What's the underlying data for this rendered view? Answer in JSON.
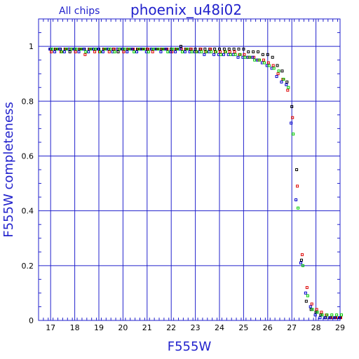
{
  "chart_data": {
    "type": "scatter",
    "title": "phoenix_u48i02",
    "subtitle": "All chips",
    "xlabel": "F555W",
    "ylabel": "F555W completeness",
    "xlim": [
      16.5,
      29
    ],
    "ylim": [
      0,
      1.1
    ],
    "x_ticks": [
      17,
      18,
      19,
      20,
      21,
      22,
      23,
      24,
      25,
      26,
      27,
      28,
      29
    ],
    "y_ticks": [
      0,
      0.2,
      0.4,
      0.6,
      0.8,
      1
    ],
    "x_tick_labels": [
      "17",
      "18",
      "19",
      "20",
      "21",
      "22",
      "23",
      "24",
      "25",
      "26",
      "27",
      "28",
      "29"
    ],
    "y_tick_labels": [
      "0",
      "0.2",
      "0.4",
      "0.6",
      "0.8",
      "1"
    ],
    "grid": true,
    "colors": {
      "text": "#2222cc",
      "axis": "#2222cc",
      "grid": "#2222cc"
    },
    "series": [
      {
        "color": "#000000",
        "x": [
          17.0,
          17.2,
          17.4,
          17.6,
          17.8,
          18.0,
          18.2,
          18.4,
          18.6,
          18.8,
          19.0,
          19.2,
          19.4,
          19.6,
          19.8,
          20.0,
          20.2,
          20.4,
          20.6,
          20.8,
          21.0,
          21.2,
          21.4,
          21.6,
          21.8,
          22.0,
          22.2,
          22.4,
          22.6,
          22.8,
          23.0,
          23.2,
          23.4,
          23.6,
          23.8,
          24.0,
          24.2,
          24.4,
          24.6,
          24.8,
          25.0,
          25.2,
          25.4,
          25.6,
          25.8,
          26.0,
          26.2,
          26.4,
          26.6,
          26.8,
          27.0,
          27.2,
          27.4,
          27.6,
          27.8,
          28.0,
          28.2,
          28.4,
          28.6,
          28.8,
          29.0
        ],
        "y": [
          0.99,
          0.99,
          0.99,
          0.99,
          0.98,
          0.99,
          0.99,
          0.99,
          0.99,
          0.99,
          0.99,
          0.99,
          0.99,
          0.99,
          0.98,
          0.99,
          0.99,
          0.99,
          0.99,
          0.99,
          0.99,
          0.99,
          0.99,
          0.99,
          0.99,
          0.99,
          0.99,
          1.0,
          0.99,
          0.99,
          0.99,
          0.99,
          0.99,
          0.99,
          0.99,
          0.99,
          0.99,
          0.99,
          0.99,
          0.99,
          0.99,
          0.98,
          0.98,
          0.98,
          0.97,
          0.97,
          0.96,
          0.93,
          0.91,
          0.87,
          0.78,
          0.55,
          0.22,
          0.07,
          0.04,
          0.03,
          0.02,
          0.01,
          0.01,
          0.01,
          0.01
        ]
      },
      {
        "color": "#dd0000",
        "x": [
          17.0,
          17.2,
          17.4,
          17.6,
          17.8,
          18.0,
          18.2,
          18.4,
          18.6,
          18.8,
          19.0,
          19.2,
          19.4,
          19.6,
          19.8,
          20.0,
          20.2,
          20.4,
          20.6,
          20.8,
          21.0,
          21.2,
          21.4,
          21.6,
          21.8,
          22.0,
          22.2,
          22.4,
          22.6,
          22.8,
          23.0,
          23.2,
          23.4,
          23.6,
          23.8,
          24.0,
          24.2,
          24.4,
          24.6,
          24.8,
          25.0,
          25.2,
          25.4,
          25.6,
          25.8,
          26.0,
          26.2,
          26.4,
          26.6,
          26.8,
          27.0,
          27.2,
          27.4,
          27.6,
          27.8,
          28.0,
          28.2,
          28.4,
          28.6,
          28.8,
          29.0
        ],
        "y": [
          0.98,
          0.99,
          0.98,
          0.99,
          0.99,
          0.98,
          0.99,
          0.97,
          0.99,
          0.98,
          0.98,
          0.99,
          0.98,
          0.99,
          0.99,
          0.98,
          0.99,
          0.99,
          0.99,
          0.99,
          0.99,
          0.98,
          0.99,
          0.99,
          0.99,
          0.98,
          0.99,
          0.99,
          0.99,
          0.99,
          0.98,
          0.99,
          0.98,
          0.99,
          0.98,
          0.98,
          0.98,
          0.98,
          0.98,
          0.97,
          0.97,
          0.96,
          0.96,
          0.95,
          0.95,
          0.94,
          0.93,
          0.9,
          0.88,
          0.84,
          0.74,
          0.49,
          0.24,
          0.12,
          0.06,
          0.04,
          0.03,
          0.02,
          0.01,
          0.01,
          0.01
        ]
      },
      {
        "color": "#0000cc",
        "x": [
          17.0,
          17.2,
          17.4,
          17.6,
          17.8,
          18.0,
          18.2,
          18.4,
          18.6,
          18.8,
          19.0,
          19.2,
          19.4,
          19.6,
          19.8,
          20.0,
          20.2,
          20.4,
          20.6,
          20.8,
          21.0,
          21.2,
          21.4,
          21.6,
          21.8,
          22.0,
          22.2,
          22.4,
          22.6,
          22.8,
          23.0,
          23.2,
          23.4,
          23.6,
          23.8,
          24.0,
          24.2,
          24.4,
          24.6,
          24.8,
          25.0,
          25.2,
          25.4,
          25.6,
          25.8,
          26.0,
          26.2,
          26.4,
          26.6,
          26.8,
          27.0,
          27.2,
          27.4,
          27.6,
          27.8,
          28.0,
          28.2,
          28.4,
          28.6,
          28.8,
          29.0
        ],
        "y": [
          0.99,
          0.98,
          0.99,
          0.98,
          0.99,
          0.99,
          0.98,
          0.99,
          0.98,
          0.99,
          0.99,
          0.98,
          0.99,
          0.98,
          0.99,
          0.99,
          0.98,
          0.99,
          0.98,
          0.99,
          0.98,
          0.99,
          0.99,
          0.98,
          0.99,
          0.98,
          0.98,
          0.99,
          0.98,
          0.98,
          0.98,
          0.98,
          0.97,
          0.98,
          0.97,
          0.97,
          0.97,
          0.97,
          0.97,
          0.96,
          0.96,
          0.96,
          0.96,
          0.95,
          0.94,
          0.93,
          0.92,
          0.89,
          0.87,
          0.86,
          0.72,
          0.44,
          0.21,
          0.1,
          0.05,
          0.02,
          0.01,
          0.01,
          0.01,
          0.01,
          0.01
        ]
      },
      {
        "color": "#00cc00",
        "x": [
          17.0,
          17.2,
          17.4,
          17.6,
          17.8,
          18.0,
          18.2,
          18.4,
          18.6,
          18.8,
          19.0,
          19.2,
          19.4,
          19.6,
          19.8,
          20.0,
          20.2,
          20.4,
          20.6,
          20.8,
          21.0,
          21.2,
          21.4,
          21.6,
          21.8,
          22.0,
          22.2,
          22.4,
          22.6,
          22.8,
          23.0,
          23.2,
          23.4,
          23.6,
          23.8,
          24.0,
          24.2,
          24.4,
          24.6,
          24.8,
          25.0,
          25.2,
          25.4,
          25.6,
          25.8,
          26.0,
          26.2,
          26.4,
          26.6,
          26.8,
          27.0,
          27.2,
          27.4,
          27.6,
          27.8,
          28.0,
          28.2,
          28.4,
          28.6,
          28.8,
          29.0
        ],
        "y": [
          0.99,
          0.99,
          0.98,
          0.99,
          0.99,
          0.99,
          0.99,
          0.98,
          0.99,
          0.99,
          0.98,
          0.99,
          0.99,
          0.98,
          0.99,
          0.99,
          0.99,
          0.98,
          0.99,
          0.99,
          0.98,
          0.99,
          0.99,
          0.99,
          0.98,
          0.99,
          0.99,
          0.98,
          0.99,
          0.98,
          0.98,
          0.98,
          0.98,
          0.98,
          0.98,
          0.97,
          0.98,
          0.97,
          0.97,
          0.97,
          0.96,
          0.96,
          0.95,
          0.95,
          0.94,
          0.93,
          0.92,
          0.91,
          0.88,
          0.85,
          0.68,
          0.41,
          0.2,
          0.09,
          0.04,
          0.03,
          0.02,
          0.02,
          0.02,
          0.02,
          0.02
        ]
      }
    ]
  }
}
